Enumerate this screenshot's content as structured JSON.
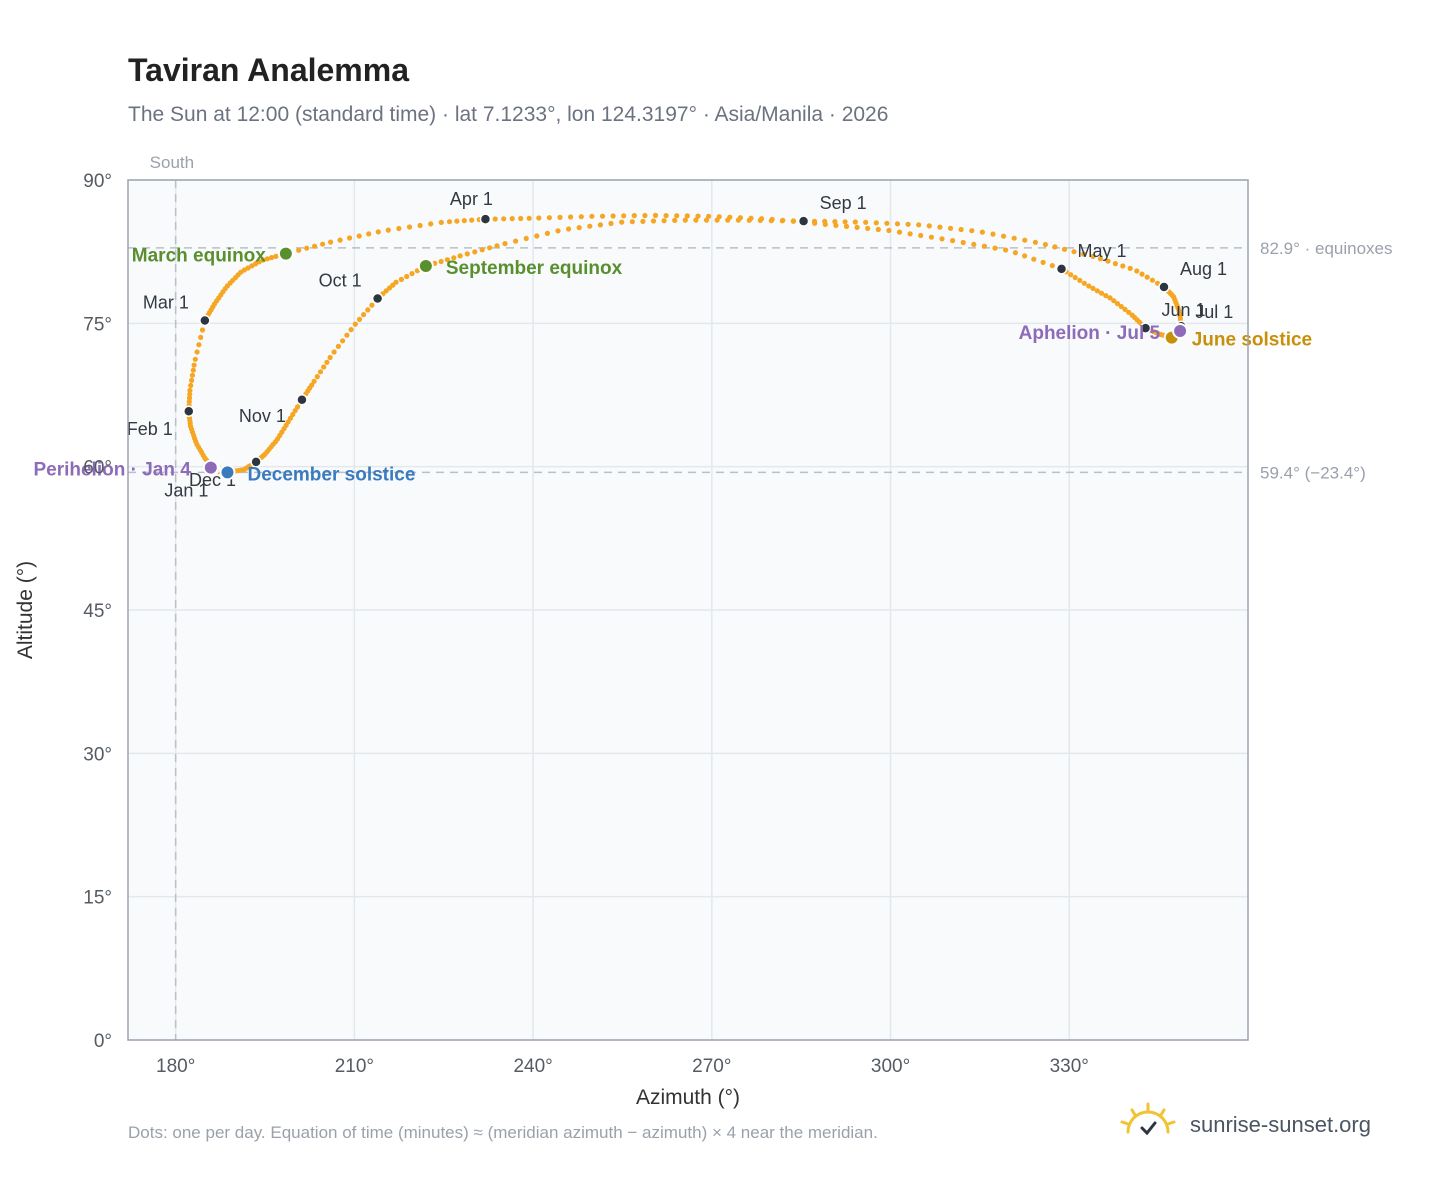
{
  "title": "Taviran Analemma",
  "subtitle": "The Sun at 12:00 (standard time) · lat 7.1233°, lon 124.3197° · Asia/Manila · 2026",
  "footnote": "Dots: one per day. Equation of time (minutes) ≈ (meridian azimuth − azimuth) × 4 near the meridian.",
  "brand": {
    "text": "sunrise-sunset.org",
    "logo_icon": "sun-logo-icon"
  },
  "chart_data": {
    "type": "scatter",
    "xlabel": "Azimuth (°)",
    "ylabel": "Altitude (°)",
    "xlim": [
      172,
      360
    ],
    "ylim": [
      0,
      90
    ],
    "x_ticks": [
      180,
      210,
      240,
      270,
      300,
      330
    ],
    "x_tick_labels": [
      "180°",
      "210°",
      "240°",
      "270°",
      "300°",
      "330°"
    ],
    "y_ticks": [
      0,
      15,
      30,
      45,
      60,
      75,
      90
    ],
    "y_tick_labels": [
      "0°",
      "15°",
      "30°",
      "45°",
      "60°",
      "75°",
      "90°"
    ],
    "grid": true,
    "colors": {
      "path": "#f5a623",
      "month_marker": "#2d3540",
      "equinox": "#5a8f2e",
      "december_solstice": "#3a7bbf",
      "june_solstice": "#c8900a",
      "apsis": "#8e6bb8",
      "reference_line": "#b8c0c8",
      "plot_bg": "#f8fafc",
      "frame": "#9aa4b2"
    },
    "reference_lines": {
      "vertical": {
        "x": 180,
        "label": "South"
      },
      "horizontal": [
        {
          "y": 82.9,
          "label": "82.9° · equinoxes"
        },
        {
          "y": 59.4,
          "label": "59.4° (−23.4°)"
        }
      ]
    },
    "month_markers": [
      {
        "label": "Jan 1",
        "az": 186.5,
        "alt": 59.8
      },
      {
        "label": "Feb 1",
        "az": 182.2,
        "alt": 65.8
      },
      {
        "label": "Mar 1",
        "az": 184.9,
        "alt": 75.3
      },
      {
        "label": "Apr 1",
        "az": 232.0,
        "alt": 85.9
      },
      {
        "label": "May 1",
        "az": 328.7,
        "alt": 80.7
      },
      {
        "label": "Jun 1",
        "az": 342.8,
        "alt": 74.5
      },
      {
        "label": "Jul 1",
        "az": 348.8,
        "alt": 74.7
      },
      {
        "label": "Aug 1",
        "az": 345.9,
        "alt": 78.8
      },
      {
        "label": "Sep 1",
        "az": 285.4,
        "alt": 85.7
      },
      {
        "label": "Oct 1",
        "az": 213.9,
        "alt": 77.6
      },
      {
        "label": "Nov 1",
        "az": 201.2,
        "alt": 67.0
      },
      {
        "label": "Dec 1",
        "az": 193.5,
        "alt": 60.5
      }
    ],
    "events": [
      {
        "label": "March equinox",
        "az": 198.5,
        "alt": 82.3,
        "kind": "equinox"
      },
      {
        "label": "September equinox",
        "az": 222.0,
        "alt": 81.0,
        "kind": "equinox"
      },
      {
        "label": "December solstice",
        "az": 188.7,
        "alt": 59.4,
        "kind": "december_solstice"
      },
      {
        "label": "June solstice",
        "az": 347.2,
        "alt": 73.5,
        "kind": "june_solstice"
      },
      {
        "label": "Perihelion · Jan 4",
        "az": 185.9,
        "alt": 59.9,
        "kind": "apsis"
      },
      {
        "label": "Aphelion · Jul 5",
        "az": 348.6,
        "alt": 74.2,
        "kind": "apsis"
      }
    ],
    "series": [
      {
        "points": [
          [
            186.5,
            59.8
          ],
          [
            185.0,
            60.8
          ],
          [
            183.5,
            62.4
          ],
          [
            182.5,
            64.2
          ],
          [
            182.2,
            65.8
          ],
          [
            182.4,
            68.0
          ],
          [
            183.2,
            71.0
          ],
          [
            184.9,
            75.3
          ],
          [
            186.5,
            77.0
          ],
          [
            188.5,
            78.8
          ],
          [
            191.0,
            80.4
          ],
          [
            194.5,
            81.6
          ],
          [
            198.5,
            82.3
          ],
          [
            206,
            83.5
          ],
          [
            215,
            84.7
          ],
          [
            225,
            85.6
          ],
          [
            232.0,
            85.9
          ],
          [
            240,
            86.0
          ],
          [
            250,
            86.2
          ],
          [
            260,
            86.3
          ],
          [
            270,
            86.2
          ],
          [
            280,
            85.9
          ],
          [
            290,
            85.3
          ],
          [
            300,
            84.7
          ],
          [
            310,
            83.7
          ],
          [
            320,
            82.6
          ],
          [
            328.7,
            80.7
          ],
          [
            333,
            79.0
          ],
          [
            337,
            77.6
          ],
          [
            340.5,
            75.9
          ],
          [
            342.8,
            74.5
          ],
          [
            345,
            73.9
          ],
          [
            347.2,
            73.5
          ],
          [
            348.6,
            74.2
          ],
          [
            348.8,
            74.7
          ],
          [
            348.5,
            76.2
          ],
          [
            347.5,
            77.8
          ],
          [
            345.9,
            78.8
          ],
          [
            341,
            80.6
          ],
          [
            334,
            82.0
          ],
          [
            325,
            83.4
          ],
          [
            315,
            84.6
          ],
          [
            305,
            85.3
          ],
          [
            295,
            85.6
          ],
          [
            285.4,
            85.7
          ],
          [
            275,
            85.8
          ],
          [
            265,
            85.8
          ],
          [
            255,
            85.6
          ],
          [
            245,
            84.8
          ],
          [
            235,
            83.3
          ],
          [
            228,
            82.1
          ],
          [
            222.0,
            81.0
          ],
          [
            217,
            79.3
          ],
          [
            213.9,
            77.6
          ],
          [
            210,
            74.8
          ],
          [
            206,
            71.5
          ],
          [
            203,
            68.7
          ],
          [
            201.2,
            67.0
          ],
          [
            199,
            64.8
          ],
          [
            197,
            62.8
          ],
          [
            195,
            61.3
          ],
          [
            193.5,
            60.5
          ],
          [
            191.5,
            59.7
          ],
          [
            188.7,
            59.4
          ],
          [
            187.3,
            59.5
          ],
          [
            186.5,
            59.8
          ]
        ]
      }
    ]
  }
}
